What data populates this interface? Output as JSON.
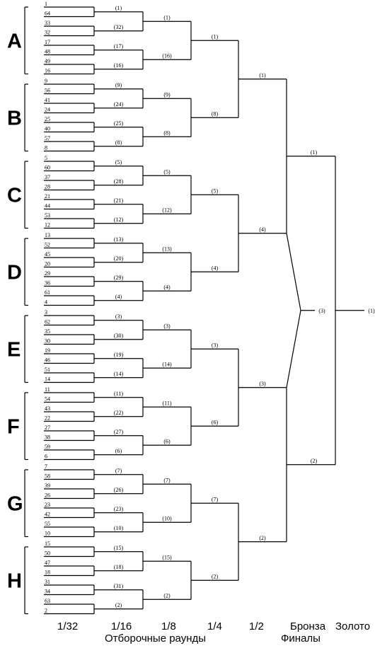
{
  "groups": [
    {
      "letter": "A",
      "seeds": [
        "1",
        "64",
        "33",
        "32",
        "17",
        "48",
        "49",
        "16"
      ],
      "r64": [
        "(1)",
        "(32)",
        "(17)",
        "(16)"
      ],
      "r16": [
        "(1)",
        "(16)"
      ],
      "r8": "(1)"
    },
    {
      "letter": "B",
      "seeds": [
        "9",
        "56",
        "41",
        "24",
        "25",
        "40",
        "57",
        "8"
      ],
      "r64": [
        "(9)",
        "(24)",
        "(25)",
        "(8)"
      ],
      "r16": [
        "(9)",
        "(8)"
      ],
      "r8": "(8)"
    },
    {
      "letter": "C",
      "seeds": [
        "5",
        "60",
        "37",
        "28",
        "21",
        "44",
        "53",
        "12"
      ],
      "r64": [
        "(5)",
        "(28)",
        "(21)",
        "(12)"
      ],
      "r16": [
        "(5)",
        "(12)"
      ],
      "r8": "(5)"
    },
    {
      "letter": "D",
      "seeds": [
        "13",
        "52",
        "45",
        "20",
        "29",
        "36",
        "61",
        "4"
      ],
      "r64": [
        "(13)",
        "(20)",
        "(29)",
        "(4)"
      ],
      "r16": [
        "(13)",
        "(4)"
      ],
      "r8": "(4)"
    },
    {
      "letter": "E",
      "seeds": [
        "3",
        "62",
        "35",
        "30",
        "19",
        "46",
        "51",
        "14"
      ],
      "r64": [
        "(3)",
        "(30)",
        "(19)",
        "(14)"
      ],
      "r16": [
        "(3)",
        "(14)"
      ],
      "r8": "(3)"
    },
    {
      "letter": "F",
      "seeds": [
        "11",
        "54",
        "43",
        "22",
        "27",
        "38",
        "59",
        "6"
      ],
      "r64": [
        "(11)",
        "(22)",
        "(27)",
        "(6)"
      ],
      "r16": [
        "(11)",
        "(6)"
      ],
      "r8": "(6)"
    },
    {
      "letter": "G",
      "seeds": [
        "7",
        "58",
        "39",
        "26",
        "23",
        "42",
        "55",
        "10"
      ],
      "r64": [
        "(7)",
        "(26)",
        "(23)",
        "(10)"
      ],
      "r16": [
        "(7)",
        "(10)"
      ],
      "r8": "(7)"
    },
    {
      "letter": "H",
      "seeds": [
        "15",
        "50",
        "47",
        "18",
        "31",
        "34",
        "63",
        "2"
      ],
      "r64": [
        "(15)",
        "(18)",
        "(31)",
        "(2)"
      ],
      "r16": [
        "(15)",
        "(2)"
      ],
      "r8": "(2)"
    }
  ],
  "quarterfinal_winners": [
    "(1)",
    "(4)",
    "(3)",
    "(2)"
  ],
  "semifinal_winners": [
    "(1)",
    "(2)"
  ],
  "bronze_label": "(3)",
  "gold_label": "(1)",
  "rounds": {
    "r32": "1/32",
    "r16": "1/16",
    "r8": "1/8",
    "r4": "1/4",
    "r2": "1/2",
    "bronze": "Бронза",
    "gold": "Золото"
  },
  "section_labels": {
    "qualifying": "Отборочные раунды",
    "finals": "Финалы"
  }
}
